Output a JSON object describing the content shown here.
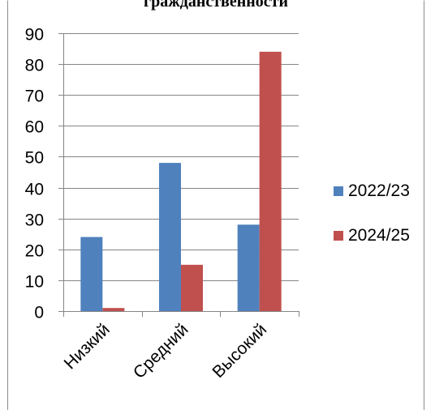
{
  "chart_data": {
    "type": "bar",
    "title": "гражданственности",
    "categories": [
      "Низкий",
      "Средний",
      "Высокий"
    ],
    "series": [
      {
        "name": "2022/23",
        "values": [
          24,
          48,
          28
        ],
        "color": "#4F81BD"
      },
      {
        "name": "2024/25",
        "values": [
          1,
          15,
          84
        ],
        "color": "#C0504D"
      }
    ],
    "ylim": [
      0,
      90
    ],
    "yticks": [
      0,
      10,
      20,
      30,
      40,
      50,
      60,
      70,
      80,
      90
    ],
    "grid": true,
    "legend": "right"
  }
}
